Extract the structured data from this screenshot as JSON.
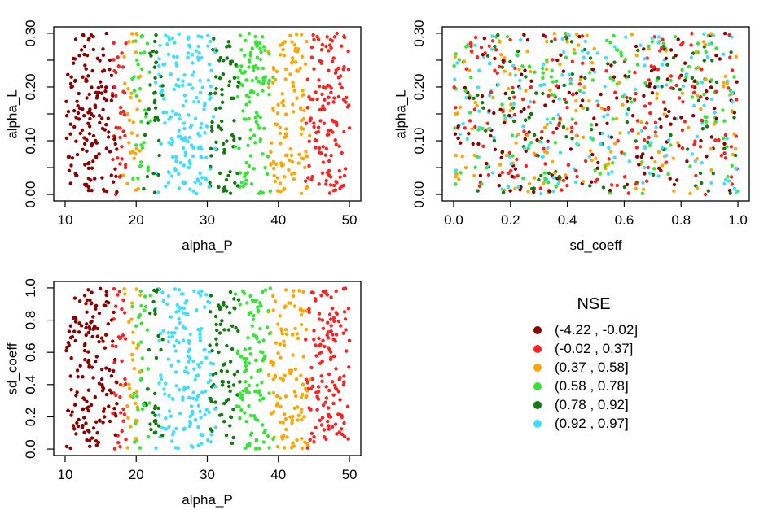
{
  "figure": {
    "background": "#FFFFFF",
    "description": "R base-graphics 2x2 figure: three scatter plots of Monte-Carlo parameter samples colored by NSE bin, plus legend"
  },
  "legend": {
    "title": "NSE",
    "items": [
      {
        "label": "(-4.22 , -0.02]",
        "color": "#8B0000",
        "color_name": "dark-red"
      },
      {
        "label": "(-0.02 , 0.37]",
        "color": "#FF2020",
        "color_name": "red"
      },
      {
        "label": "(0.37 , 0.58]",
        "color": "#FFA500",
        "color_name": "orange"
      },
      {
        "label": "(0.58 , 0.78]",
        "color": "#33E633",
        "color_name": "bright-green"
      },
      {
        "label": "(0.78 , 0.92]",
        "color": "#117A11",
        "color_name": "dark-green"
      },
      {
        "label": "(0.92 , 0.97]",
        "color": "#3CDFFF",
        "color_name": "cyan"
      }
    ]
  },
  "chart_data": {
    "type": "scatter",
    "layout": "2x2 grid: 3 scatter panels (top-left, top-right, bottom-left) + legend bottom-right, white background, black plot boxes with outward ticks",
    "n_points": 880,
    "seed": 1234,
    "band_jitter": 0.7,
    "point_radius_px": 2.2,
    "variables": {
      "alpha_P": {
        "range": [
          10,
          50
        ],
        "distribution": "uniform"
      },
      "alpha_L": {
        "range": [
          0,
          0.3
        ],
        "distribution": "uniform"
      },
      "sd_coeff": {
        "range": [
          0,
          1
        ],
        "distribution": "uniform"
      }
    },
    "nse_depends_on": "alpha_P only (vertical color bands in alpha_P panels; random color mix vs sd_coeff)",
    "nse_bands_alpha_P": [
      {
        "range": [
          10.0,
          17.1
        ],
        "bin_index": 0
      },
      {
        "range": [
          17.1,
          18.6
        ],
        "bin_index": 1
      },
      {
        "range": [
          18.6,
          20.1
        ],
        "bin_index": 2
      },
      {
        "range": [
          20.1,
          21.7
        ],
        "bin_index": 3
      },
      {
        "range": [
          21.7,
          23.3
        ],
        "bin_index": 4
      },
      {
        "range": [
          23.3,
          30.5
        ],
        "bin_index": 5
      },
      {
        "range": [
          30.5,
          34.2
        ],
        "bin_index": 4
      },
      {
        "range": [
          34.2,
          38.8
        ],
        "bin_index": 3
      },
      {
        "range": [
          38.8,
          44.2
        ],
        "bin_index": 2
      },
      {
        "range": [
          44.2,
          50.01
        ],
        "bin_index": 1
      }
    ],
    "panels": [
      {
        "id": "top-left",
        "xlabel": "alpha_P",
        "ylabel": "alpha_L",
        "x_field": "alpha_P",
        "y_field": "alpha_L",
        "x_domain": [
          10,
          50
        ],
        "y_domain": [
          0,
          0.3
        ],
        "x_ticks": [
          {
            "v": 10,
            "label": "10"
          },
          {
            "v": 20,
            "label": "20"
          },
          {
            "v": 30,
            "label": "30"
          },
          {
            "v": 40,
            "label": "40"
          },
          {
            "v": 50,
            "label": "50"
          }
        ],
        "y_ticks": [
          {
            "v": 0.0,
            "label": "0.00"
          },
          {
            "v": 0.05,
            "label": ""
          },
          {
            "v": 0.1,
            "label": "0.10"
          },
          {
            "v": 0.15,
            "label": ""
          },
          {
            "v": 0.2,
            "label": "0.20"
          },
          {
            "v": 0.25,
            "label": ""
          },
          {
            "v": 0.3,
            "label": "0.30"
          }
        ]
      },
      {
        "id": "top-right",
        "xlabel": "sd_coeff",
        "ylabel": "alpha_L",
        "x_field": "sd_coeff",
        "y_field": "alpha_L",
        "x_domain": [
          0,
          1
        ],
        "y_domain": [
          0,
          0.3
        ],
        "x_ticks": [
          {
            "v": 0.0,
            "label": "0.0"
          },
          {
            "v": 0.2,
            "label": "0.2"
          },
          {
            "v": 0.4,
            "label": "0.4"
          },
          {
            "v": 0.6,
            "label": "0.6"
          },
          {
            "v": 0.8,
            "label": "0.8"
          },
          {
            "v": 1.0,
            "label": "1.0"
          }
        ],
        "y_ticks": [
          {
            "v": 0.0,
            "label": "0.00"
          },
          {
            "v": 0.05,
            "label": ""
          },
          {
            "v": 0.1,
            "label": "0.10"
          },
          {
            "v": 0.15,
            "label": ""
          },
          {
            "v": 0.2,
            "label": "0.20"
          },
          {
            "v": 0.25,
            "label": ""
          },
          {
            "v": 0.3,
            "label": "0.30"
          }
        ]
      },
      {
        "id": "bottom-left",
        "xlabel": "alpha_P",
        "ylabel": "sd_coeff",
        "x_field": "alpha_P",
        "y_field": "sd_coeff",
        "x_domain": [
          10,
          50
        ],
        "y_domain": [
          0,
          1
        ],
        "x_ticks": [
          {
            "v": 10,
            "label": "10"
          },
          {
            "v": 20,
            "label": "20"
          },
          {
            "v": 30,
            "label": "30"
          },
          {
            "v": 40,
            "label": "40"
          },
          {
            "v": 50,
            "label": "50"
          }
        ],
        "y_ticks": [
          {
            "v": 0.0,
            "label": "0.0"
          },
          {
            "v": 0.2,
            "label": "0.2"
          },
          {
            "v": 0.4,
            "label": "0.4"
          },
          {
            "v": 0.6,
            "label": "0.6"
          },
          {
            "v": 0.8,
            "label": "0.8"
          },
          {
            "v": 1.0,
            "label": "1.0"
          }
        ]
      }
    ]
  }
}
